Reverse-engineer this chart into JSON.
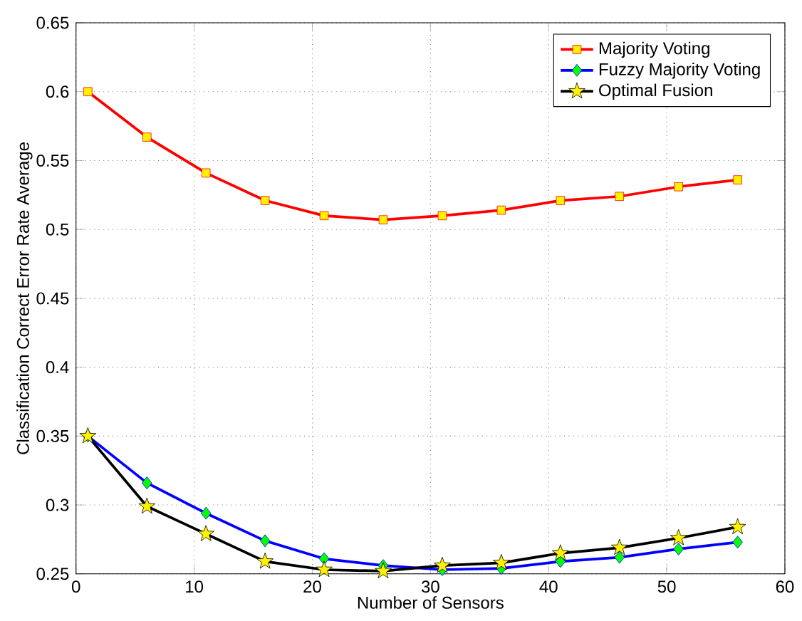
{
  "chart_data": {
    "type": "line",
    "xlabel": "Number of Sensors",
    "ylabel": "Classification Correct Error Rate Average",
    "x": [
      1,
      6,
      11,
      16,
      21,
      26,
      31,
      36,
      41,
      46,
      51,
      56
    ],
    "series": [
      {
        "name": "Majority Voting",
        "color": "#ff0000",
        "marker": "square",
        "values": [
          0.6,
          0.567,
          0.541,
          0.521,
          0.51,
          0.507,
          0.51,
          0.514,
          0.521,
          0.524,
          0.531,
          0.536
        ]
      },
      {
        "name": "Fuzzy Majority Voting",
        "color": "#0000ff",
        "marker": "diamond",
        "values": [
          0.35,
          0.316,
          0.294,
          0.274,
          0.261,
          0.256,
          0.253,
          0.254,
          0.259,
          0.262,
          0.268,
          0.273
        ]
      },
      {
        "name": "Optimal Fusion",
        "color": "#000000",
        "marker": "star",
        "values": [
          0.35,
          0.299,
          0.279,
          0.259,
          0.253,
          0.252,
          0.256,
          0.258,
          0.265,
          0.269,
          0.276,
          0.284
        ]
      }
    ],
    "xlim": [
      0,
      60
    ],
    "xticks": [
      0,
      10,
      20,
      30,
      40,
      50,
      60
    ],
    "ylim": [
      0.25,
      0.65
    ],
    "yticks": [
      0.25,
      0.3,
      0.35,
      0.4,
      0.45,
      0.5,
      0.55,
      0.6,
      0.65
    ],
    "grid": true,
    "legend": "top right",
    "line_style": "solid"
  }
}
